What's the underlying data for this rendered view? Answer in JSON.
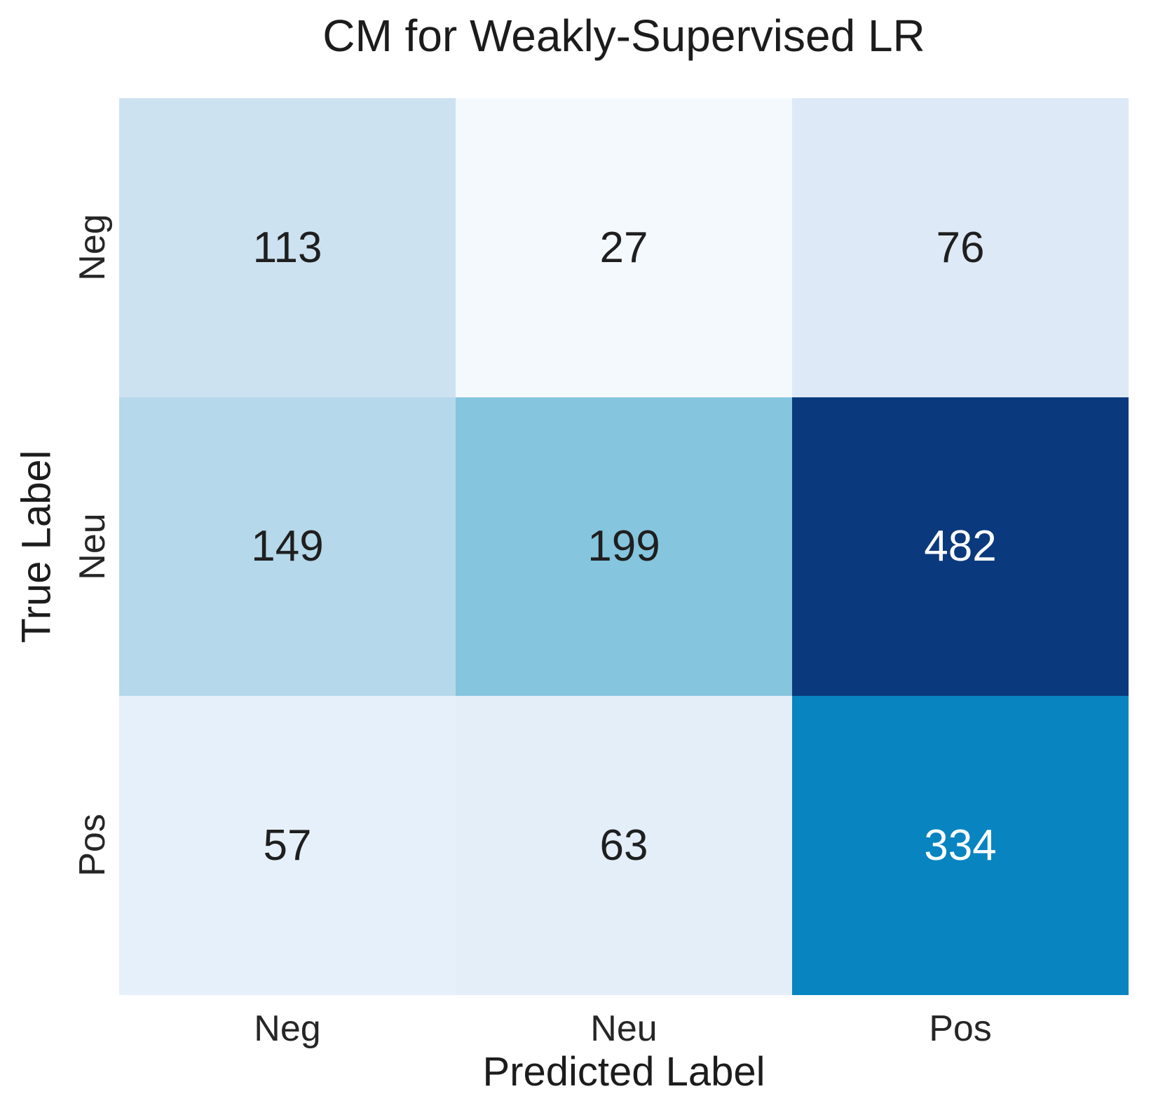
{
  "chart_data": {
    "type": "heatmap",
    "title": "CM for Weakly-Supervised LR",
    "xlabel": "Predicted Label",
    "ylabel": "True Label",
    "x_labels": [
      "Neg",
      "Neu",
      "Pos"
    ],
    "y_labels": [
      "Neg",
      "Neu",
      "Pos"
    ],
    "values": [
      [
        113,
        27,
        76
      ],
      [
        149,
        199,
        482
      ],
      [
        57,
        63,
        334
      ]
    ],
    "cell_colors": [
      [
        "#cde2f1",
        "#f4f9fe",
        "#dde9f6"
      ],
      [
        "#b5d8ea",
        "#85c5de",
        "#0a3a7d"
      ],
      [
        "#e6f0fa",
        "#e4eef8",
        "#0884c0"
      ]
    ],
    "cell_text_colors": [
      [
        "#1f1f1f",
        "#1f1f1f",
        "#1f1f1f"
      ],
      [
        "#1f1f1f",
        "#1f1f1f",
        "#ffffff"
      ],
      [
        "#1f1f1f",
        "#1f1f1f",
        "#ffffff"
      ]
    ],
    "colormap": "Blues",
    "vmin": 0,
    "vmax": 482,
    "legend": "none",
    "grid": false,
    "row_tick_rotation_deg": 90,
    "background_color": "#ffffff"
  }
}
